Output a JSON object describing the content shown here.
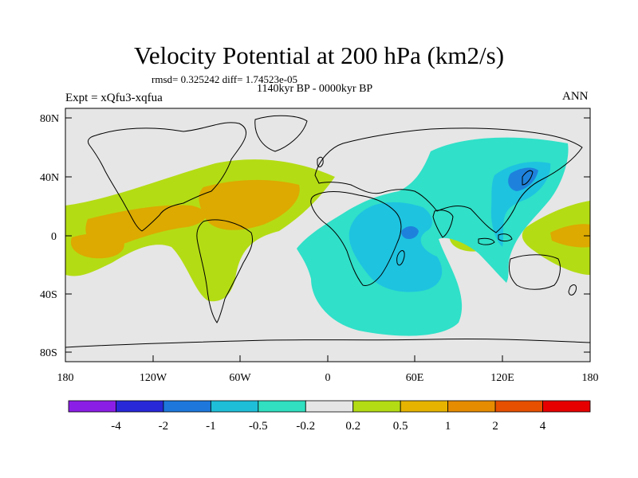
{
  "title": "Velocity Potential at 200 hPa (km2/s)",
  "stats": "rmsd= 0.325242 diff= 1.74523e-05",
  "period": "1140kyr BP - 0000kyr BP",
  "experiment": "Expt = xQfu3-xqfua",
  "season": "ANN",
  "lat_labels": [
    "80N",
    "40N",
    "0",
    "40S",
    "80S"
  ],
  "lon_labels": [
    "180",
    "120W",
    "60W",
    "0",
    "60E",
    "120E",
    "180"
  ],
  "colorbar": {
    "colors": [
      "#8b1ee6",
      "#2828d8",
      "#1e78dc",
      "#1ebed8",
      "#30e0c0",
      "#e6e6e6",
      "#b4dc14",
      "#e6b400",
      "#e68c00",
      "#e65000",
      "#e60000"
    ],
    "labels": [
      "-4",
      "-2",
      "-1",
      "-0.5",
      "-0.2",
      "0.2",
      "0.5",
      "1",
      "2",
      "4"
    ]
  },
  "colors": {
    "background": "#e6e6e6",
    "pos_02": "#b4dc14",
    "pos_05": "#dcaa00",
    "neg_02": "#30e0c8",
    "neg_05": "#1ec3e0",
    "neg_1": "#1e82dc"
  }
}
